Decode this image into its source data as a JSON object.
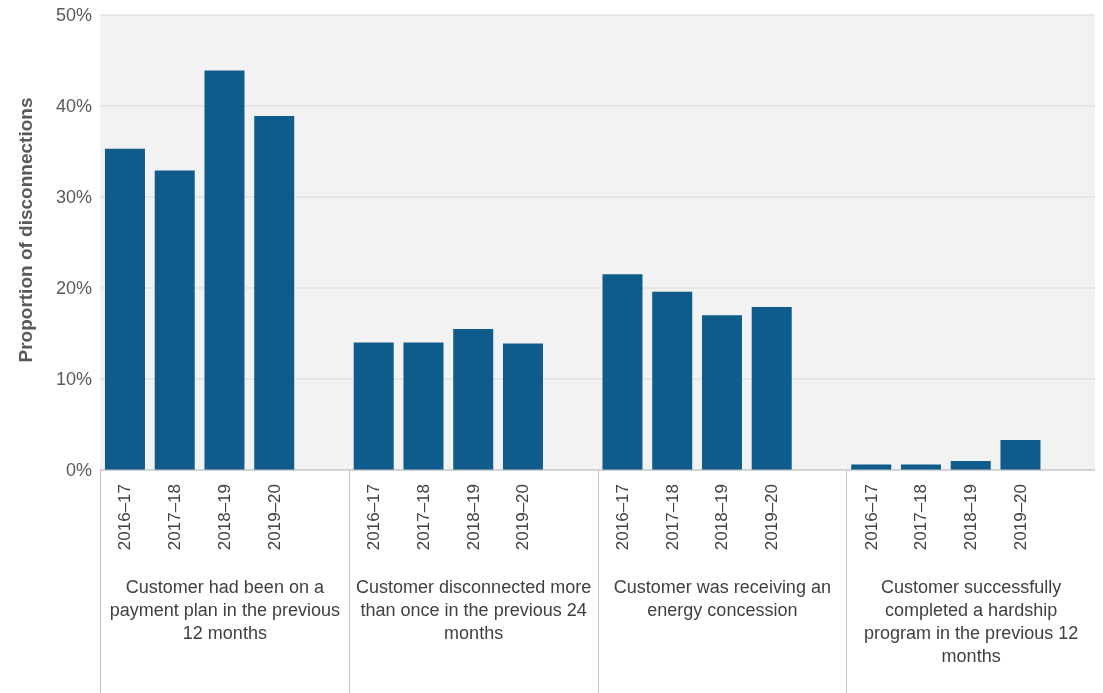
{
  "chart_data": {
    "type": "bar",
    "ylabel": "Proportion of disconnections",
    "categories": [
      "2016–17",
      "2017–18",
      "2018–19",
      "2019–20",
      null,
      "2016–17",
      "2017–18",
      "2018–19",
      "2019–20",
      null,
      "2016–17",
      "2017–18",
      "2018–19",
      "2019–20",
      null,
      "2016–17",
      "2017–18",
      "2018–19",
      "2019–20",
      null
    ],
    "values": [
      35.3,
      32.9,
      43.9,
      38.9,
      null,
      14.0,
      14.0,
      15.5,
      13.9,
      null,
      21.5,
      19.6,
      17.0,
      17.9,
      null,
      0.6,
      0.6,
      1.0,
      3.3,
      null
    ],
    "color": "#0f5b8c",
    "ylim": [
      0,
      50
    ],
    "yticks": [
      {
        "value": 0,
        "label": "0%"
      },
      {
        "value": 10,
        "label": "10%"
      },
      {
        "value": 20,
        "label": "20%"
      },
      {
        "value": 30,
        "label": "30%"
      },
      {
        "value": 40,
        "label": "40%"
      },
      {
        "value": 50,
        "label": "50%"
      }
    ],
    "grid": "y",
    "annotations": [
      "Customer had been on a payment plan in the previous 12 months",
      "Customer disconnected more than once in the previous 24 months",
      "Customer was receiving an energy concession",
      "Customer successfully completed a hardship program in the previous 12 months"
    ]
  }
}
